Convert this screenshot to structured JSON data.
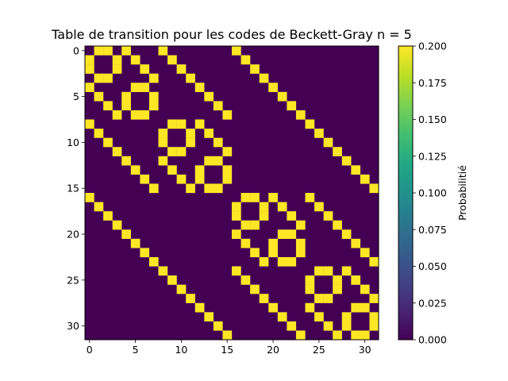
{
  "chart_data": {
    "type": "heatmap",
    "title": "Table de transition pour les codes de Beckett-Gray n = 5",
    "xlabel": "",
    "ylabel": "",
    "n": 32,
    "xlim": [
      -0.5,
      31.5
    ],
    "ylim": [
      31.5,
      -0.5
    ],
    "x_ticks": [
      0,
      5,
      10,
      15,
      20,
      25,
      30
    ],
    "y_ticks": [
      0,
      5,
      10,
      15,
      20,
      25,
      30
    ],
    "colormap": "viridis",
    "color_low": "#440154",
    "color_high": "#fde725",
    "colorbar": {
      "label": "Probabilitié",
      "range": [
        0.0,
        0.2
      ],
      "ticks": [
        "0.000",
        "0.025",
        "0.050",
        "0.075",
        "0.100",
        "0.125",
        "0.150",
        "0.175",
        "0.200"
      ]
    },
    "cell_value": 0.2,
    "nonzero_cells": [
      [
        0,
        1
      ],
      [
        0,
        2
      ],
      [
        0,
        4
      ],
      [
        0,
        8
      ],
      [
        0,
        16
      ],
      [
        1,
        0
      ],
      [
        1,
        3
      ],
      [
        1,
        5
      ],
      [
        1,
        9
      ],
      [
        1,
        17
      ],
      [
        2,
        0
      ],
      [
        2,
        3
      ],
      [
        2,
        6
      ],
      [
        2,
        10
      ],
      [
        2,
        18
      ],
      [
        3,
        1
      ],
      [
        3,
        2
      ],
      [
        3,
        7
      ],
      [
        3,
        11
      ],
      [
        3,
        19
      ],
      [
        4,
        0
      ],
      [
        4,
        5
      ],
      [
        4,
        6
      ],
      [
        4,
        12
      ],
      [
        4,
        20
      ],
      [
        5,
        1
      ],
      [
        5,
        4
      ],
      [
        5,
        7
      ],
      [
        5,
        13
      ],
      [
        5,
        21
      ],
      [
        6,
        2
      ],
      [
        6,
        4
      ],
      [
        6,
        7
      ],
      [
        6,
        14
      ],
      [
        6,
        22
      ],
      [
        7,
        3
      ],
      [
        7,
        5
      ],
      [
        7,
        6
      ],
      [
        7,
        15
      ],
      [
        7,
        23
      ],
      [
        8,
        0
      ],
      [
        8,
        9
      ],
      [
        8,
        10
      ],
      [
        8,
        12
      ],
      [
        8,
        24
      ],
      [
        9,
        1
      ],
      [
        9,
        8
      ],
      [
        9,
        11
      ],
      [
        9,
        13
      ],
      [
        9,
        25
      ],
      [
        10,
        2
      ],
      [
        10,
        8
      ],
      [
        10,
        11
      ],
      [
        10,
        14
      ],
      [
        10,
        26
      ],
      [
        11,
        3
      ],
      [
        11,
        9
      ],
      [
        11,
        10
      ],
      [
        11,
        15
      ],
      [
        11,
        27
      ],
      [
        12,
        4
      ],
      [
        12,
        8
      ],
      [
        12,
        13
      ],
      [
        12,
        14
      ],
      [
        12,
        28
      ],
      [
        13,
        5
      ],
      [
        13,
        9
      ],
      [
        13,
        12
      ],
      [
        13,
        15
      ],
      [
        13,
        29
      ],
      [
        14,
        6
      ],
      [
        14,
        10
      ],
      [
        14,
        12
      ],
      [
        14,
        15
      ],
      [
        14,
        30
      ],
      [
        15,
        7
      ],
      [
        15,
        11
      ],
      [
        15,
        13
      ],
      [
        15,
        14
      ],
      [
        15,
        31
      ],
      [
        16,
        0
      ],
      [
        16,
        17
      ],
      [
        16,
        18
      ],
      [
        16,
        20
      ],
      [
        16,
        24
      ],
      [
        17,
        1
      ],
      [
        17,
        16
      ],
      [
        17,
        19
      ],
      [
        17,
        21
      ],
      [
        17,
        25
      ],
      [
        18,
        2
      ],
      [
        18,
        16
      ],
      [
        18,
        19
      ],
      [
        18,
        22
      ],
      [
        18,
        26
      ],
      [
        19,
        3
      ],
      [
        19,
        17
      ],
      [
        19,
        18
      ],
      [
        19,
        23
      ],
      [
        19,
        27
      ],
      [
        20,
        4
      ],
      [
        20,
        16
      ],
      [
        20,
        21
      ],
      [
        20,
        22
      ],
      [
        20,
        28
      ],
      [
        21,
        5
      ],
      [
        21,
        17
      ],
      [
        21,
        20
      ],
      [
        21,
        23
      ],
      [
        21,
        29
      ],
      [
        22,
        6
      ],
      [
        22,
        18
      ],
      [
        22,
        20
      ],
      [
        22,
        23
      ],
      [
        22,
        30
      ],
      [
        23,
        7
      ],
      [
        23,
        19
      ],
      [
        23,
        21
      ],
      [
        23,
        22
      ],
      [
        23,
        31
      ],
      [
        24,
        8
      ],
      [
        24,
        16
      ],
      [
        24,
        25
      ],
      [
        24,
        26
      ],
      [
        24,
        28
      ],
      [
        25,
        9
      ],
      [
        25,
        17
      ],
      [
        25,
        24
      ],
      [
        25,
        27
      ],
      [
        25,
        29
      ],
      [
        26,
        10
      ],
      [
        26,
        18
      ],
      [
        26,
        24
      ],
      [
        26,
        27
      ],
      [
        26,
        30
      ],
      [
        27,
        11
      ],
      [
        27,
        19
      ],
      [
        27,
        25
      ],
      [
        27,
        26
      ],
      [
        27,
        31
      ],
      [
        28,
        12
      ],
      [
        28,
        20
      ],
      [
        28,
        24
      ],
      [
        28,
        29
      ],
      [
        28,
        30
      ],
      [
        29,
        13
      ],
      [
        29,
        21
      ],
      [
        29,
        25
      ],
      [
        29,
        28
      ],
      [
        29,
        31
      ],
      [
        30,
        14
      ],
      [
        30,
        22
      ],
      [
        30,
        26
      ],
      [
        30,
        28
      ],
      [
        30,
        31
      ],
      [
        31,
        15
      ],
      [
        31,
        23
      ],
      [
        31,
        27
      ],
      [
        31,
        29
      ],
      [
        31,
        30
      ]
    ]
  }
}
